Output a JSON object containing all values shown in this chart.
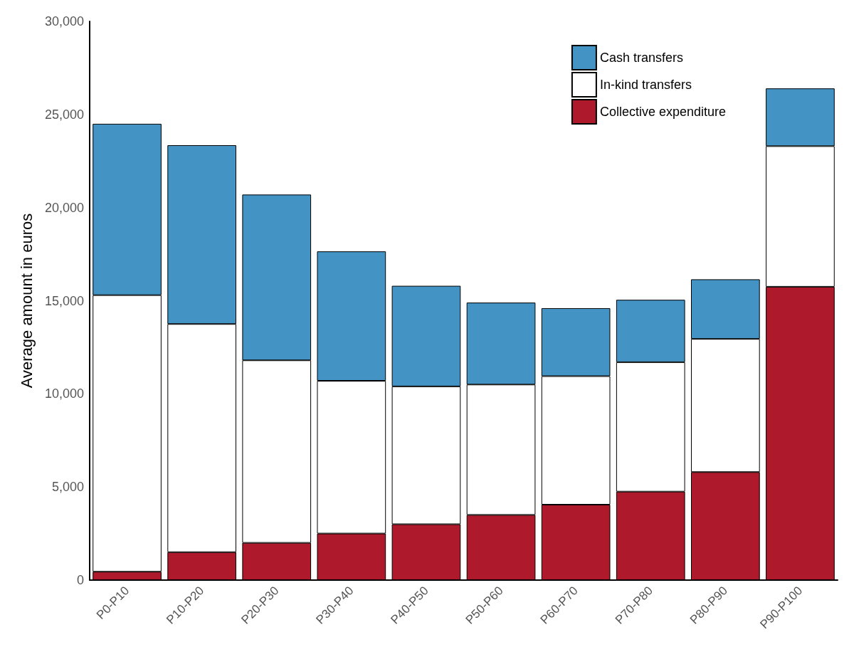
{
  "chart_data": {
    "type": "bar",
    "stacked": true,
    "ylabel": "Average amount in euros",
    "categories": [
      "P0-P10",
      "P10-P20",
      "P20-P30",
      "P30-P40",
      "P40-P50",
      "P50-P60",
      "P60-P70",
      "P70-P80",
      "P80-P90",
      "P90-P100"
    ],
    "series": [
      {
        "name": "Collective expenditure",
        "color": "#ae1a2b",
        "values": [
          450,
          1500,
          2000,
          2500,
          3000,
          3500,
          4050,
          4750,
          5800,
          15750
        ]
      },
      {
        "name": "In-kind transfers",
        "color": "#ffffff",
        "values": [
          14850,
          12250,
          9800,
          8200,
          7400,
          7000,
          6900,
          6950,
          7150,
          7550
        ]
      },
      {
        "name": "Cash transfers",
        "color": "#4394c4",
        "values": [
          9200,
          9600,
          8900,
          6950,
          5400,
          4400,
          3650,
          3350,
          3200,
          3100
        ]
      }
    ],
    "ylim": [
      0,
      30000
    ],
    "yticks": [
      0,
      {
        "value": 5000,
        "label": "5,000"
      },
      {
        "value": 10000,
        "label": "10,000"
      },
      {
        "value": 15000,
        "label": "15,000"
      },
      {
        "value": 20000,
        "label": "20,000"
      },
      {
        "value": 25000,
        "label": "25,000"
      },
      {
        "value": 30000,
        "label": "30,000"
      }
    ],
    "grid": false,
    "legend": "top right"
  }
}
